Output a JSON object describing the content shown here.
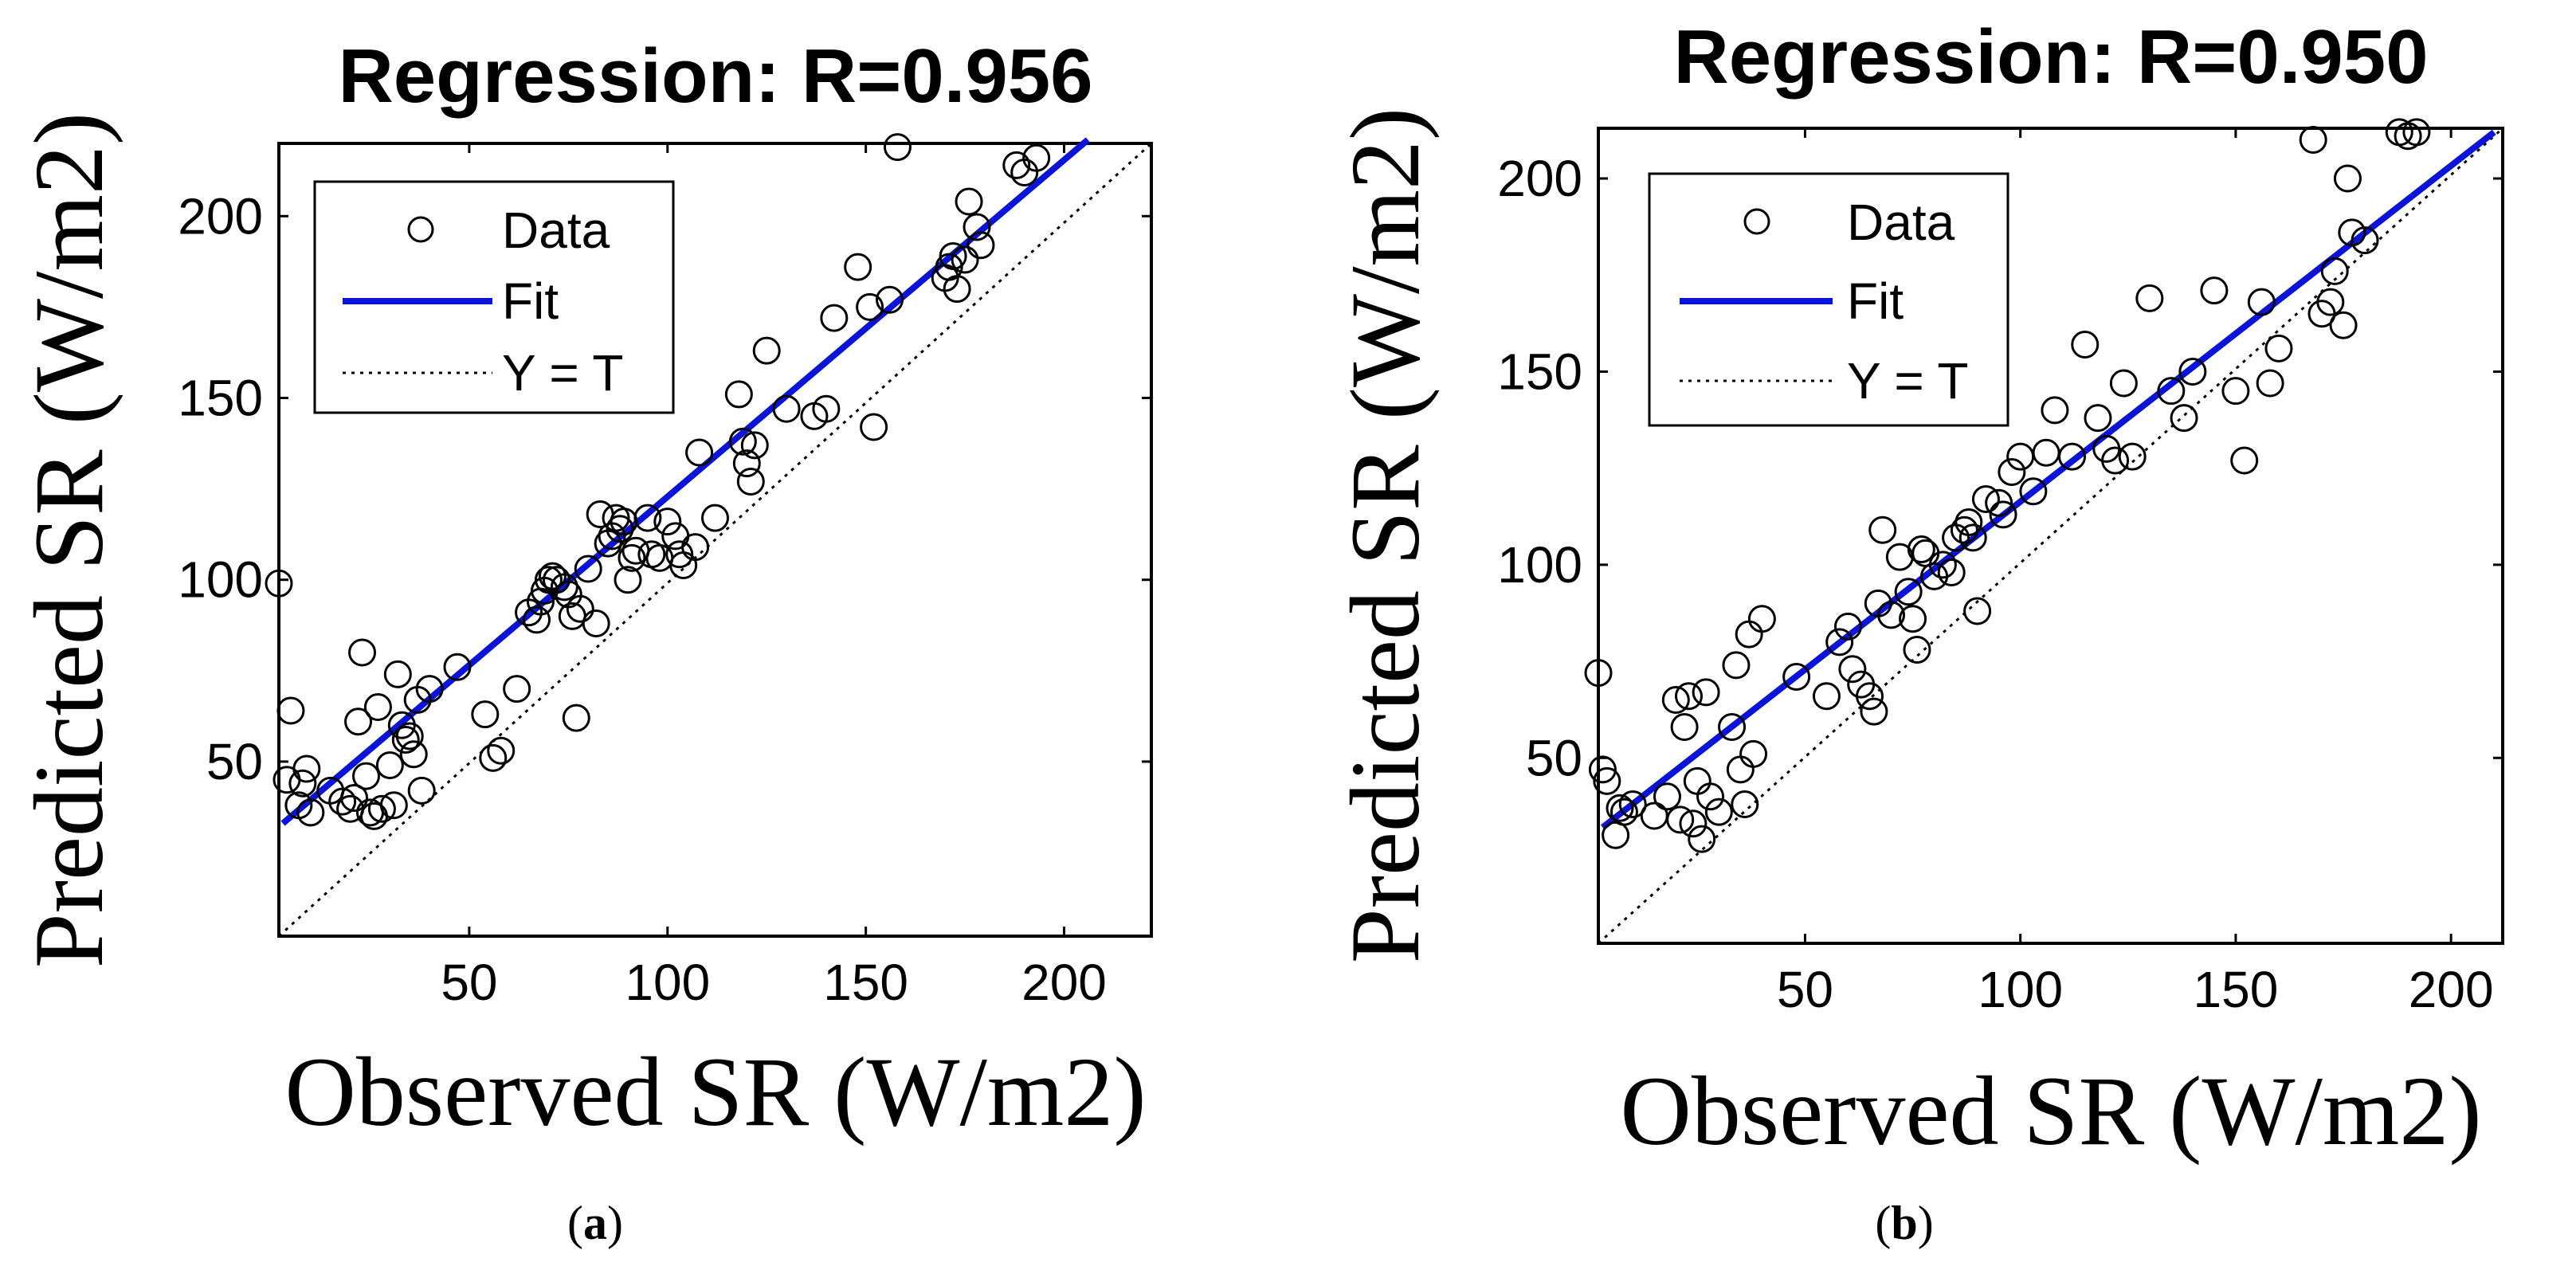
{
  "chart_data": [
    {
      "type": "scatter",
      "title": "Regression: R=0.956",
      "xlabel": "Observed SR (W/m2)",
      "ylabel": "Predicted SR (W/m2)",
      "caption_letter": "a",
      "xlim": [
        2,
        222
      ],
      "ylim": [
        2,
        220
      ],
      "xticks": [
        50,
        100,
        150,
        200
      ],
      "yticks": [
        50,
        100,
        150,
        200
      ],
      "legend": {
        "data": "Data",
        "fit": "Fit",
        "identity": "Y = T",
        "position": "top-left"
      },
      "colors": {
        "fit": "#0a14d8",
        "data": "#000000",
        "identity": "#000000"
      },
      "fit": {
        "x": [
          3,
          206
        ],
        "y": [
          33,
          221
        ]
      },
      "identity": {
        "x": [
          2,
          222
        ],
        "y": [
          2,
          220
        ]
      },
      "points": {
        "x": [
          2,
          4,
          5,
          7,
          8,
          9,
          10,
          15,
          18,
          20,
          21,
          22,
          23,
          24,
          25,
          26,
          27,
          28,
          30,
          31,
          32,
          33,
          34,
          35,
          36,
          37,
          38,
          40,
          47,
          54,
          56,
          58,
          62,
          65,
          67,
          68,
          69,
          70,
          71,
          72,
          74,
          75,
          76,
          77,
          78,
          80,
          82,
          83,
          85,
          86,
          87,
          88,
          89,
          90,
          91,
          92,
          95,
          96,
          98,
          100,
          102,
          103,
          104,
          107,
          108,
          112,
          118,
          119,
          120,
          121,
          122,
          125,
          130,
          137,
          140,
          142,
          148,
          151,
          152,
          156,
          158,
          170,
          171,
          172,
          173,
          175,
          176,
          178,
          179,
          188,
          190,
          193
        ],
        "y": [
          99,
          45,
          64,
          38,
          44,
          48,
          36,
          42,
          39,
          37,
          40,
          61,
          80,
          46,
          36,
          35,
          65,
          37,
          49,
          38,
          74,
          60,
          56,
          57,
          52,
          67,
          42,
          70,
          76,
          63,
          51,
          53,
          70,
          91,
          89,
          94,
          97,
          100,
          101,
          100,
          98,
          96,
          90,
          62,
          92,
          103,
          88,
          118,
          110,
          112,
          117,
          114,
          116,
          100,
          106,
          108,
          117,
          107,
          106,
          116,
          112,
          107,
          104,
          109,
          135,
          117,
          151,
          138,
          132,
          127,
          137,
          163,
          147,
          145,
          147,
          172,
          186,
          175,
          142,
          177,
          219,
          183,
          186,
          189,
          180,
          188,
          204,
          197,
          192,
          214,
          212,
          216
        ]
      }
    },
    {
      "type": "scatter",
      "title": "Regression: R=0.950",
      "xlabel": "Observed SR (W/m2)",
      "ylabel": "Predicted SR (W/m2)",
      "caption_letter": "b",
      "xlim": [
        2,
        212
      ],
      "ylim": [
        2,
        213
      ],
      "xticks": [
        50,
        100,
        150,
        200
      ],
      "yticks": [
        50,
        100,
        150,
        200
      ],
      "legend": {
        "data": "Data",
        "fit": "Fit",
        "identity": "Y = T",
        "position": "top-left"
      },
      "colors": {
        "fit": "#0a14d8",
        "data": "#000000",
        "identity": "#000000"
      },
      "fit": {
        "x": [
          3,
          210
        ],
        "y": [
          32,
          212
        ]
      },
      "identity": {
        "x": [
          2,
          212
        ],
        "y": [
          2,
          213
        ]
      },
      "points": {
        "x": [
          2,
          3,
          4,
          6,
          7,
          8,
          10,
          15,
          18,
          20,
          21,
          22,
          23,
          24,
          25,
          26,
          27,
          28,
          30,
          33,
          34,
          35,
          36,
          37,
          38,
          40,
          48,
          55,
          58,
          60,
          61,
          63,
          65,
          66,
          67,
          68,
          70,
          72,
          74,
          75,
          76,
          77,
          78,
          80,
          82,
          84,
          85,
          87,
          88,
          89,
          90,
          92,
          95,
          96,
          98,
          100,
          103,
          106,
          108,
          112,
          115,
          118,
          120,
          122,
          124,
          126,
          130,
          135,
          138,
          140,
          145,
          150,
          152,
          156,
          158,
          160,
          168,
          170,
          172,
          173,
          175,
          176,
          177,
          180,
          188,
          190,
          192
        ],
        "y": [
          72,
          47,
          44,
          30,
          37,
          36,
          38,
          35,
          40,
          65,
          34,
          58,
          66,
          33,
          44,
          29,
          67,
          40,
          36,
          58,
          74,
          47,
          38,
          82,
          51,
          86,
          71,
          66,
          80,
          84,
          73,
          69,
          66,
          62,
          90,
          109,
          87,
          102,
          93,
          86,
          78,
          104,
          103,
          97,
          100,
          98,
          107,
          109,
          111,
          107,
          88,
          117,
          116,
          113,
          124,
          128,
          119,
          129,
          140,
          128,
          157,
          138,
          130,
          127,
          147,
          128,
          169,
          145,
          138,
          150,
          171,
          145,
          127,
          168,
          147,
          156,
          210,
          165,
          168,
          176,
          162,
          200,
          186,
          184,
          212,
          211,
          212
        ]
      }
    }
  ]
}
